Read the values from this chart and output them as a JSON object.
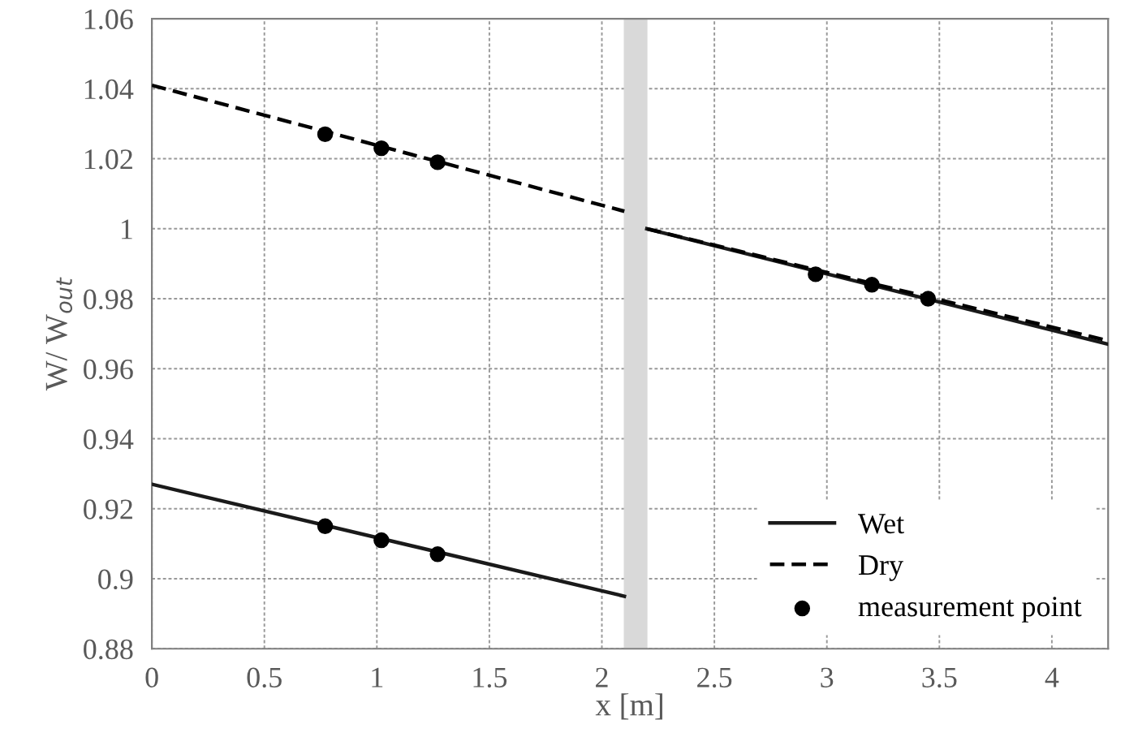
{
  "chart_data": {
    "type": "line",
    "xlabel": "x [m]",
    "ylabel": "W/ W$_{out}$",
    "xlim": [
      0,
      4.25
    ],
    "xticks": [
      0,
      0.5,
      1,
      1.5,
      2,
      2.5,
      3,
      3.5,
      4
    ],
    "ylim": [
      0.88,
      1.06
    ],
    "yticks": [
      0.88,
      0.9,
      0.92,
      0.94,
      0.96,
      0.98,
      1,
      1.02,
      1.04,
      1.06
    ],
    "grid": true,
    "legend": "bottom right",
    "series": [
      {
        "name": "Wet",
        "color": "#1a1a1a",
        "line_style": "solid",
        "x": [
          0,
          2.1,
          2.15,
          2.2,
          4.25
        ],
        "values": [
          0.927,
          0.895,
          null,
          1.0,
          0.967
        ]
      },
      {
        "name": "Dry",
        "color": "#000000",
        "line_style": "dashed",
        "x": [
          0,
          2.1,
          2.15,
          2.2,
          4.25
        ],
        "values": [
          1.041,
          1.005,
          null,
          1.0,
          0.968
        ]
      },
      {
        "name": "measurement point",
        "type": "scatter",
        "color": "#000000",
        "marker": "circle",
        "x": [
          0.77,
          1.02,
          1.27,
          0.77,
          1.02,
          1.27,
          2.95,
          3.2,
          3.45
        ],
        "values": [
          0.915,
          0.911,
          0.907,
          1.027,
          1.023,
          1.019,
          0.987,
          0.984,
          0.98
        ]
      }
    ],
    "bands": [
      {
        "axis": "x",
        "from": 2.1,
        "to": 2.2,
        "color": "#d9d9d9"
      }
    ]
  }
}
